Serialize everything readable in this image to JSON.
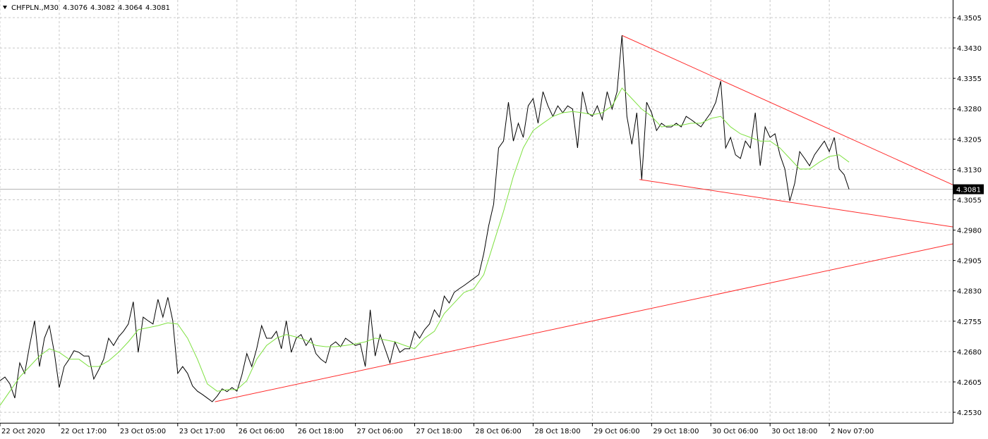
{
  "chart_data": {
    "type": "line",
    "symbol": "CHFPLN.,M30",
    "ohlc": [
      4.3076,
      4.3082,
      4.3064,
      4.3081
    ],
    "last_price": 4.3081,
    "grid": true,
    "xlim": [
      0,
      386
    ],
    "ylim": [
      4.2504,
      4.35485
    ],
    "xticks": [
      {
        "value": 0,
        "label": "22 Oct 2020"
      },
      {
        "value": 24,
        "label": "22 Oct 17:00"
      },
      {
        "value": 48,
        "label": "23 Oct 05:00"
      },
      {
        "value": 72,
        "label": "23 Oct 17:00"
      },
      {
        "value": 96,
        "label": "26 Oct 06:00"
      },
      {
        "value": 120,
        "label": "26 Oct 18:00"
      },
      {
        "value": 144,
        "label": "27 Oct 06:00"
      },
      {
        "value": 168,
        "label": "27 Oct 18:00"
      },
      {
        "value": 192,
        "label": "28 Oct 06:00"
      },
      {
        "value": 216,
        "label": "28 Oct 18:00"
      },
      {
        "value": 240,
        "label": "29 Oct 06:00"
      },
      {
        "value": 264,
        "label": "29 Oct 18:00"
      },
      {
        "value": 288,
        "label": "30 Oct 06:00"
      },
      {
        "value": 312,
        "label": "30 Oct 18:00"
      },
      {
        "value": 336,
        "label": "2 Nov 07:00"
      }
    ],
    "yticks": [
      4.3505,
      {
        "value": 4.343,
        "label": "4.3430"
      },
      4.3355,
      {
        "value": 4.328,
        "label": "4.3280"
      },
      4.3205,
      {
        "value": 4.313,
        "label": "4.3130"
      },
      4.3055,
      {
        "value": 4.298,
        "label": "4.2980"
      },
      4.2905,
      {
        "value": 4.283,
        "label": "4.2830"
      },
      4.2755,
      {
        "value": 4.268,
        "label": "4.2680"
      },
      4.2605,
      {
        "value": 4.253,
        "label": "4.2530"
      }
    ],
    "x": [
      0,
      2,
      4,
      6,
      8,
      10,
      12,
      14,
      16,
      18,
      20,
      22,
      24,
      26,
      28,
      30,
      32,
      34,
      36,
      38,
      40,
      42,
      44,
      46,
      48,
      50,
      52,
      54,
      56,
      58,
      60,
      62,
      64,
      66,
      68,
      70,
      72,
      74,
      76,
      78,
      80,
      82,
      84,
      86,
      88,
      90,
      92,
      94,
      96,
      98,
      100,
      102,
      104,
      106,
      108,
      110,
      112,
      114,
      116,
      118,
      120,
      122,
      124,
      126,
      128,
      130,
      132,
      134,
      136,
      138,
      140,
      142,
      144,
      146,
      148,
      150,
      152,
      154,
      156,
      158,
      160,
      162,
      164,
      166,
      168,
      170,
      172,
      174,
      176,
      178,
      180,
      182,
      184,
      186,
      188,
      190,
      192,
      194,
      196,
      198,
      200,
      202,
      204,
      206,
      208,
      210,
      212,
      214,
      216,
      218,
      220,
      222,
      224,
      226,
      228,
      230,
      232,
      234,
      236,
      238,
      240,
      242,
      244,
      246,
      248,
      250,
      252,
      254,
      256,
      258,
      260,
      262,
      264,
      266,
      268,
      270,
      272,
      274,
      276,
      278,
      280,
      282,
      284,
      286,
      288,
      290,
      292,
      294,
      296,
      298,
      300,
      302,
      304,
      306,
      308,
      310,
      312,
      314,
      316,
      318,
      320,
      322,
      324,
      326,
      328,
      330,
      332,
      334,
      336,
      338,
      340,
      342,
      344
    ],
    "series": [
      {
        "color": "#000000",
        "values": [
          4.2608,
          4.2617,
          4.26,
          4.2565,
          4.2652,
          4.2626,
          4.2695,
          4.2756,
          4.2643,
          4.2713,
          4.2744,
          4.2678,
          4.2591,
          4.2643,
          4.2661,
          4.2682,
          4.2678,
          4.2669,
          4.2669,
          4.2612,
          4.2635,
          4.2661,
          4.2713,
          4.2695,
          4.2716,
          4.273,
          4.2748,
          4.2803,
          4.2678,
          4.2765,
          4.2756,
          4.2748,
          4.2809,
          4.2765,
          4.2814,
          4.2756,
          4.2626,
          4.2643,
          4.2626,
          4.2595,
          4.2582,
          4.2574,
          4.2565,
          4.2556,
          4.257,
          4.2588,
          4.2581,
          4.2591,
          4.2582,
          4.2622,
          4.2675,
          4.2643,
          4.2687,
          4.2744,
          4.2713,
          4.2713,
          4.273,
          4.2687,
          4.2756,
          4.2678,
          4.2713,
          4.2722,
          4.2695,
          4.2713,
          4.2675,
          4.2661,
          4.2652,
          4.2695,
          4.2704,
          4.2692,
          4.2713,
          4.2704,
          4.2695,
          4.2699,
          4.2643,
          4.2783,
          4.2669,
          4.2722,
          4.2687,
          4.2652,
          4.2704,
          4.2678,
          4.2687,
          4.2687,
          4.273,
          4.2713,
          4.2734,
          4.2748,
          4.2783,
          4.2765,
          4.2817,
          4.28,
          4.2826,
          4.2835,
          4.2843,
          4.2852,
          4.2861,
          4.287,
          4.2922,
          4.2991,
          4.3044,
          4.3183,
          4.32,
          4.3296,
          4.32,
          4.3244,
          4.3209,
          4.3287,
          4.3305,
          4.3244,
          4.3322,
          4.3287,
          4.3261,
          4.3287,
          4.327,
          4.3287,
          4.3279,
          4.3183,
          4.3322,
          4.327,
          4.3261,
          4.3287,
          4.3253,
          4.3322,
          4.3279,
          4.3322,
          4.3461,
          4.3261,
          4.3192,
          4.327,
          4.3105,
          4.3296,
          4.327,
          4.3226,
          4.3244,
          4.3235,
          4.3235,
          4.3244,
          4.3235,
          4.3261,
          4.3253,
          4.3244,
          4.3235,
          4.3253,
          4.327,
          4.3296,
          4.3348,
          4.3183,
          4.3209,
          4.3166,
          4.3157,
          4.32,
          4.3183,
          4.327,
          4.3139,
          4.3235,
          4.3209,
          4.3218,
          4.3166,
          4.3131,
          4.3052,
          4.3096,
          4.3174,
          4.3157,
          4.3139,
          4.3166,
          4.3183,
          4.32,
          4.3174,
          4.3209,
          4.3131,
          4.3117,
          4.3081
        ]
      },
      {
        "color": "#7ee040",
        "x": [
          0,
          4,
          8,
          12,
          16,
          20,
          24,
          28,
          32,
          36,
          40,
          44,
          48,
          52,
          56,
          60,
          64,
          68,
          72,
          76,
          80,
          84,
          88,
          92,
          96,
          100,
          104,
          108,
          112,
          116,
          120,
          124,
          128,
          132,
          136,
          140,
          144,
          148,
          152,
          156,
          160,
          164,
          168,
          172,
          176,
          180,
          184,
          188,
          192,
          196,
          200,
          204,
          208,
          212,
          216,
          220,
          224,
          228,
          232,
          236,
          240,
          244,
          248,
          252,
          256,
          260,
          264,
          268,
          272,
          276,
          280,
          284,
          288,
          292,
          296,
          300,
          304,
          308,
          312,
          316,
          320,
          324,
          328,
          332,
          336,
          340,
          344
        ],
        "values": [
          4.2547,
          4.2582,
          4.2617,
          4.2643,
          4.2669,
          4.2687,
          4.2678,
          4.2661,
          4.2661,
          4.2643,
          4.2643,
          4.2657,
          4.2678,
          4.2704,
          4.2734,
          4.2739,
          4.2744,
          4.2751,
          4.2748,
          4.2713,
          4.2661,
          4.26,
          4.2582,
          4.2586,
          4.2586,
          4.2608,
          4.2661,
          4.2695,
          4.2713,
          4.2722,
          4.2716,
          4.2708,
          4.2695,
          4.2692,
          4.2692,
          4.2695,
          4.2699,
          4.2704,
          4.2713,
          4.2709,
          4.2704,
          4.2695,
          4.2687,
          4.2713,
          4.273,
          4.2774,
          4.28,
          4.2826,
          4.2835,
          4.287,
          4.2948,
          4.3026,
          4.3113,
          4.3183,
          4.3226,
          4.3244,
          4.3261,
          4.327,
          4.3273,
          4.327,
          4.3265,
          4.327,
          4.3287,
          4.3331,
          4.3305,
          4.3279,
          4.3261,
          4.3235,
          4.3239,
          4.3239,
          4.3244,
          4.3244,
          4.3256,
          4.3261,
          4.3235,
          4.3218,
          4.3209,
          4.32,
          4.32,
          4.3183,
          4.3157,
          4.3131,
          4.3131,
          4.3148,
          4.3162,
          4.3166,
          4.3148
        ]
      }
    ],
    "trendlines": [
      {
        "color": "#ff2a2a",
        "x": [
          252,
          386
        ],
        "values": [
          4.3461,
          4.3092
        ]
      },
      {
        "color": "#ff2a2a",
        "x": [
          259.1,
          386
        ],
        "values": [
          4.3105,
          4.2988
        ]
      },
      {
        "color": "#ff2a2a",
        "x": [
          87.1,
          386
        ],
        "values": [
          4.2556,
          4.2946
        ]
      }
    ]
  }
}
